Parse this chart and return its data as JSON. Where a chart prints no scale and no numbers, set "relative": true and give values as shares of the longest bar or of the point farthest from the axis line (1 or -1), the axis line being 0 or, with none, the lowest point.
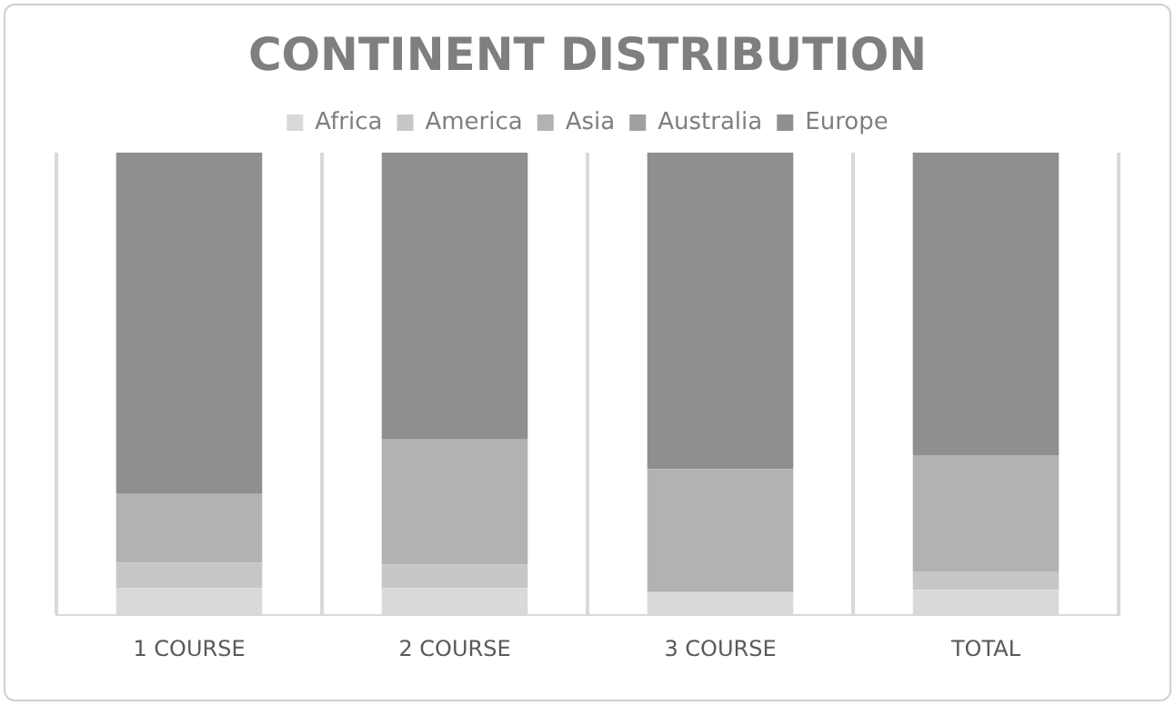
{
  "chart_data": {
    "type": "bar",
    "title": "CONTINENT DISTRIBUTION",
    "categories": [
      "1 COURSE",
      "2 COURSE",
      "3 COURSE",
      "TOTAL"
    ],
    "stacked": true,
    "relative": true,
    "grid": "x",
    "legend": "top",
    "series": [
      {
        "name": "Africa",
        "color": "#d9d9d9",
        "values": [
          0.059,
          0.059,
          0.05,
          0.055
        ]
      },
      {
        "name": "America",
        "color": "#c7c7c7",
        "values": [
          0.055,
          0.051,
          null,
          0.038
        ]
      },
      {
        "name": "Asia",
        "color": "#b2b2b2",
        "values": [
          0.148,
          0.27,
          0.266,
          0.253
        ]
      },
      {
        "name": "Australia",
        "color": "#a0a0a0",
        "values": [
          0,
          0,
          0,
          0
        ]
      },
      {
        "name": "Europe",
        "color": "#8f8f8f",
        "values": [
          0.738,
          0.62,
          0.684,
          0.654
        ]
      }
    ]
  }
}
